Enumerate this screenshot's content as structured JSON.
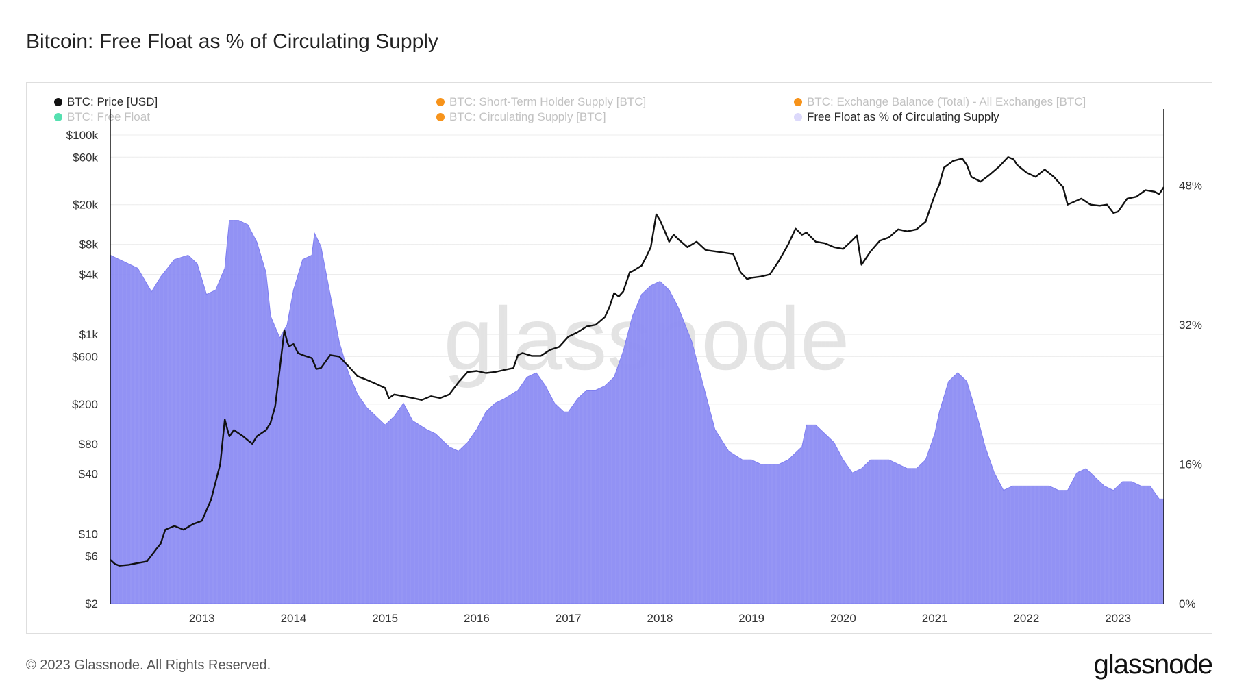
{
  "title": "Bitcoin: Free Float as % of Circulating Supply",
  "legend": [
    {
      "label": "BTC: Price [USD]",
      "color": "#111111",
      "state": "active"
    },
    {
      "label": "BTC: Short-Term Holder Supply [BTC]",
      "color": "#f7931a",
      "state": "muted"
    },
    {
      "label": "BTC: Exchange Balance (Total) - All Exchanges [BTC]",
      "color": "#f7931a",
      "state": "muted"
    },
    {
      "label": "BTC: Free Float",
      "color": "#55e0b0",
      "state": "muted"
    },
    {
      "label": "BTC: Circulating Supply [BTC]",
      "color": "#f7931a",
      "state": "muted"
    },
    {
      "label": "Free Float as % of Circulating Supply",
      "color": "#dcd9fb",
      "state": "active"
    }
  ],
  "watermark": "glassnode",
  "footer": {
    "copyright": "© 2023 Glassnode. All Rights Reserved.",
    "logo": "glassnode"
  },
  "colors": {
    "price_line": "#111111",
    "area_fill": "#8c8cf3",
    "area_stroke": "#7c7cf0"
  },
  "chart_data": {
    "type": "line+area",
    "title": "Bitcoin: Free Float as % of Circulating Supply",
    "x_range": [
      2012.0,
      2023.5
    ],
    "x_ticks": [
      "2013",
      "2014",
      "2015",
      "2016",
      "2017",
      "2018",
      "2019",
      "2020",
      "2021",
      "2022",
      "2023"
    ],
    "x_tick_values": [
      2013,
      2014,
      2015,
      2016,
      2017,
      2018,
      2019,
      2020,
      2021,
      2022,
      2023
    ],
    "left_axis": {
      "label": "BTC: Price [USD]",
      "scale": "log",
      "range": [
        2,
        100000
      ],
      "ticks": [
        {
          "label": "$100k",
          "value": 100000
        },
        {
          "label": "$60k",
          "value": 60000
        },
        {
          "label": "$20k",
          "value": 20000
        },
        {
          "label": "$8k",
          "value": 8000
        },
        {
          "label": "$4k",
          "value": 4000
        },
        {
          "label": "$1k",
          "value": 1000
        },
        {
          "label": "$600",
          "value": 600
        },
        {
          "label": "$200",
          "value": 200
        },
        {
          "label": "$80",
          "value": 80
        },
        {
          "label": "$40",
          "value": 40
        },
        {
          "label": "$10",
          "value": 10
        },
        {
          "label": "$6",
          "value": 6
        },
        {
          "label": "$2",
          "value": 2
        }
      ]
    },
    "right_axis": {
      "label": "Free Float as % of Circulating Supply",
      "scale": "linear",
      "range": [
        0,
        56
      ],
      "ticks": [
        {
          "label": "48%",
          "value": 48
        },
        {
          "label": "32%",
          "value": 32
        },
        {
          "label": "16%",
          "value": 16
        },
        {
          "label": "0%",
          "value": 0
        }
      ]
    },
    "series": [
      {
        "name": "BTC: Price [USD]",
        "axis": "left",
        "kind": "line",
        "x": [
          2012.0,
          2012.05,
          2012.1,
          2012.2,
          2012.3,
          2012.4,
          2012.5,
          2012.55,
          2012.6,
          2012.7,
          2012.8,
          2012.9,
          2013.0,
          2013.1,
          2013.2,
          2013.25,
          2013.28,
          2013.3,
          2013.35,
          2013.45,
          2013.55,
          2013.6,
          2013.7,
          2013.75,
          2013.8,
          2013.85,
          2013.9,
          2013.93,
          2013.95,
          2014.0,
          2014.05,
          2014.1,
          2014.2,
          2014.25,
          2014.3,
          2014.4,
          2014.5,
          2014.6,
          2014.7,
          2014.8,
          2014.9,
          2015.0,
          2015.04,
          2015.1,
          2015.2,
          2015.3,
          2015.4,
          2015.5,
          2015.6,
          2015.7,
          2015.8,
          2015.9,
          2016.0,
          2016.1,
          2016.2,
          2016.3,
          2016.4,
          2016.45,
          2016.5,
          2016.6,
          2016.7,
          2016.8,
          2016.9,
          2017.0,
          2017.1,
          2017.2,
          2017.3,
          2017.4,
          2017.45,
          2017.5,
          2017.55,
          2017.6,
          2017.67,
          2017.7,
          2017.8,
          2017.85,
          2017.9,
          2017.96,
          2018.0,
          2018.05,
          2018.1,
          2018.15,
          2018.2,
          2018.3,
          2018.4,
          2018.5,
          2018.6,
          2018.7,
          2018.8,
          2018.88,
          2018.95,
          2019.0,
          2019.1,
          2019.2,
          2019.3,
          2019.4,
          2019.48,
          2019.55,
          2019.6,
          2019.7,
          2019.8,
          2019.9,
          2020.0,
          2020.1,
          2020.15,
          2020.2,
          2020.3,
          2020.4,
          2020.5,
          2020.6,
          2020.7,
          2020.8,
          2020.9,
          2020.95,
          2021.0,
          2021.05,
          2021.1,
          2021.2,
          2021.3,
          2021.35,
          2021.4,
          2021.5,
          2021.6,
          2021.7,
          2021.8,
          2021.86,
          2021.9,
          2022.0,
          2022.1,
          2022.2,
          2022.3,
          2022.4,
          2022.45,
          2022.5,
          2022.6,
          2022.7,
          2022.8,
          2022.88,
          2022.95,
          2023.0,
          2023.1,
          2023.2,
          2023.3,
          2023.4,
          2023.45,
          2023.5
        ],
        "values": [
          5.5,
          5,
          4.8,
          4.9,
          5.1,
          5.3,
          7,
          8,
          11,
          12,
          11,
          12.5,
          13.5,
          22,
          50,
          140,
          110,
          95,
          110,
          95,
          80,
          95,
          110,
          130,
          190,
          450,
          1100,
          850,
          760,
          800,
          650,
          620,
          580,
          450,
          460,
          620,
          600,
          480,
          380,
          350,
          320,
          290,
          230,
          250,
          240,
          230,
          220,
          240,
          230,
          250,
          330,
          420,
          430,
          410,
          420,
          440,
          460,
          620,
          650,
          610,
          610,
          700,
          750,
          950,
          1050,
          1200,
          1250,
          1500,
          1900,
          2600,
          2400,
          2700,
          4200,
          4300,
          4900,
          6000,
          7500,
          16000,
          14000,
          11000,
          8500,
          10000,
          9000,
          7500,
          8500,
          7000,
          6800,
          6600,
          6400,
          4200,
          3600,
          3700,
          3800,
          4000,
          5500,
          8000,
          11500,
          10000,
          10500,
          8500,
          8200,
          7500,
          7200,
          8800,
          9800,
          5000,
          6800,
          8700,
          9400,
          11300,
          10800,
          11300,
          13500,
          18500,
          25000,
          32000,
          47000,
          55000,
          58000,
          50000,
          38000,
          34000,
          40000,
          48000,
          60000,
          57000,
          50000,
          42000,
          38000,
          45000,
          38000,
          30000,
          20000,
          21000,
          23000,
          20000,
          19500,
          20000,
          16500,
          17000,
          23000,
          24000,
          28000,
          27000,
          25500,
          30000
        ]
      },
      {
        "name": "Free Float as % of Circulating Supply",
        "axis": "right",
        "kind": "area",
        "x": [
          2012.0,
          2012.1,
          2012.2,
          2012.3,
          2012.45,
          2012.55,
          2012.7,
          2012.85,
          2012.95,
          2013.05,
          2013.15,
          2013.25,
          2013.3,
          2013.4,
          2013.5,
          2013.6,
          2013.7,
          2013.75,
          2013.85,
          2013.93,
          2014.0,
          2014.1,
          2014.2,
          2014.23,
          2014.3,
          2014.4,
          2014.5,
          2014.6,
          2014.7,
          2014.8,
          2014.9,
          2015.0,
          2015.1,
          2015.2,
          2015.3,
          2015.45,
          2015.55,
          2015.7,
          2015.8,
          2015.9,
          2016.0,
          2016.1,
          2016.2,
          2016.3,
          2016.45,
          2016.55,
          2016.65,
          2016.75,
          2016.85,
          2016.95,
          2017.0,
          2017.1,
          2017.2,
          2017.3,
          2017.4,
          2017.5,
          2017.6,
          2017.7,
          2017.8,
          2017.9,
          2018.0,
          2018.1,
          2018.2,
          2018.35,
          2018.5,
          2018.6,
          2018.75,
          2018.9,
          2019.0,
          2019.1,
          2019.2,
          2019.3,
          2019.4,
          2019.55,
          2019.6,
          2019.7,
          2019.8,
          2019.9,
          2020.0,
          2020.1,
          2020.2,
          2020.3,
          2020.5,
          2020.6,
          2020.7,
          2020.8,
          2020.9,
          2021.0,
          2021.05,
          2021.15,
          2021.25,
          2021.35,
          2021.45,
          2021.55,
          2021.65,
          2021.75,
          2021.85,
          2021.95,
          2022.05,
          2022.15,
          2022.25,
          2022.35,
          2022.45,
          2022.55,
          2022.65,
          2022.75,
          2022.85,
          2022.95,
          2023.05,
          2023.15,
          2023.25,
          2023.35,
          2023.45,
          2023.5
        ],
        "values": [
          40.0,
          39.5,
          39.0,
          38.5,
          35.8,
          37.5,
          39.5,
          40.0,
          39.0,
          35.5,
          36.0,
          38.5,
          44.0,
          44.0,
          43.5,
          41.5,
          38.0,
          33.0,
          30.5,
          32.0,
          36.0,
          39.5,
          40.0,
          42.5,
          41.0,
          35.5,
          30.0,
          26.5,
          24.0,
          22.5,
          21.5,
          20.5,
          21.5,
          23.0,
          21.0,
          20.0,
          19.5,
          18.0,
          17.5,
          18.5,
          20.0,
          22.0,
          23.0,
          23.5,
          24.5,
          26.0,
          26.5,
          25.0,
          23.0,
          22.0,
          22.0,
          23.5,
          24.5,
          24.5,
          25.0,
          26.0,
          29.0,
          33.0,
          35.5,
          36.5,
          37.0,
          36.0,
          34.0,
          30.0,
          24.0,
          20.0,
          17.5,
          16.5,
          16.5,
          16.0,
          16.0,
          16.0,
          16.5,
          18.0,
          20.5,
          20.5,
          19.5,
          18.5,
          16.5,
          15.0,
          15.5,
          16.5,
          16.5,
          16.0,
          15.5,
          15.5,
          16.5,
          19.5,
          22.0,
          25.5,
          26.5,
          25.5,
          22.0,
          18.0,
          15.0,
          13.0,
          13.5,
          13.5,
          13.5,
          13.5,
          13.5,
          13.0,
          13.0,
          15.0,
          15.5,
          14.5,
          13.5,
          13.0,
          14.0,
          14.0,
          13.5,
          13.5,
          12.0,
          12.0
        ]
      }
    ]
  }
}
